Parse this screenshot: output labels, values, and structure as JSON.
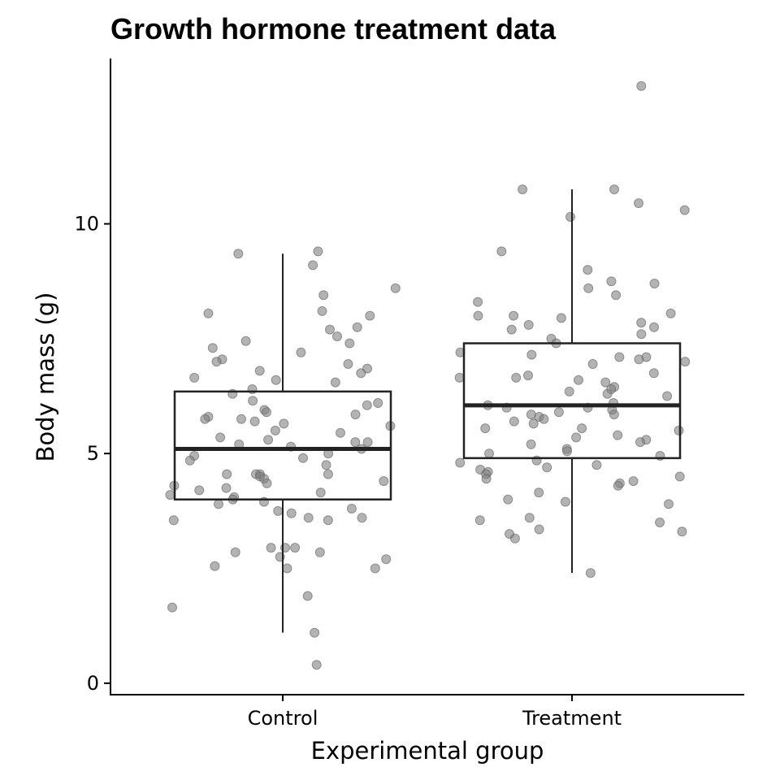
{
  "chart_data": {
    "type": "box",
    "title": "Growth hormone treatment data",
    "xlabel": "Experimental group",
    "ylabel": "Body mass (g)",
    "ylim": [
      -0.25,
      13.6
    ],
    "yticks": [
      0,
      5,
      10
    ],
    "ytick_labels": [
      "0",
      "5",
      "10"
    ],
    "categories": [
      "Control",
      "Treatment"
    ],
    "grid": false,
    "legend": "none",
    "point_color": "#808080",
    "box_color": "#222222",
    "boxes": [
      {
        "category": "Control",
        "whisker_low": 1.1,
        "q1": 4.0,
        "median": 5.1,
        "q3": 6.35,
        "whisker_high": 9.35
      },
      {
        "category": "Treatment",
        "whisker_low": 2.4,
        "q1": 4.9,
        "median": 6.05,
        "q3": 7.4,
        "whisker_high": 10.75
      }
    ],
    "points": [
      {
        "category": "Control",
        "values": [
          9.4,
          9.35,
          9.1,
          8.6,
          8.45,
          8.1,
          8.05,
          8.0,
          7.7,
          7.75,
          7.55,
          7.45,
          7.4,
          7.3,
          7.2,
          7.05,
          7.0,
          6.95,
          6.85,
          6.75,
          6.65,
          6.6,
          6.55,
          6.4,
          6.3,
          6.15,
          6.1,
          6.05,
          5.95,
          5.9,
          5.85,
          5.8,
          5.75,
          5.75,
          5.7,
          5.65,
          5.6,
          5.5,
          5.45,
          5.35,
          5.3,
          5.25,
          5.25,
          5.2,
          5.15,
          5.1,
          5.0,
          4.95,
          4.9,
          4.85,
          4.75,
          4.55,
          4.55,
          4.55,
          4.55,
          4.5,
          4.45,
          4.4,
          4.35,
          4.3,
          4.25,
          4.2,
          4.15,
          4.1,
          4.05,
          4.0,
          3.95,
          3.9,
          3.8,
          3.75,
          3.7,
          3.6,
          3.6,
          3.55,
          3.55,
          2.95,
          2.95,
          2.95,
          2.85,
          2.85,
          2.75,
          2.7,
          2.55,
          2.5,
          2.5,
          1.9,
          1.65,
          1.1,
          0.4,
          6.8
        ]
      },
      {
        "category": "Treatment",
        "values": [
          13.0,
          10.75,
          10.75,
          10.45,
          10.3,
          10.15,
          9.4,
          9.0,
          8.75,
          8.7,
          8.6,
          8.45,
          8.3,
          8.05,
          8.0,
          8.0,
          7.95,
          7.85,
          7.8,
          7.75,
          7.7,
          7.6,
          7.5,
          7.4,
          7.2,
          7.15,
          7.1,
          7.1,
          7.05,
          7.0,
          6.95,
          6.75,
          6.7,
          6.65,
          6.65,
          6.6,
          6.55,
          6.45,
          6.4,
          6.35,
          6.3,
          6.25,
          6.1,
          6.05,
          6.0,
          6.0,
          5.95,
          5.9,
          5.85,
          5.85,
          5.8,
          5.75,
          5.7,
          5.65,
          5.55,
          5.55,
          5.5,
          5.4,
          5.35,
          5.3,
          5.25,
          5.2,
          5.1,
          5.05,
          5.0,
          4.95,
          4.85,
          4.8,
          4.75,
          4.7,
          4.65,
          4.6,
          4.55,
          4.45,
          4.4,
          4.35,
          4.3,
          4.15,
          4.0,
          3.95,
          3.9,
          3.6,
          3.55,
          3.5,
          3.35,
          3.3,
          3.25,
          3.15,
          2.4,
          4.5
        ]
      }
    ]
  }
}
